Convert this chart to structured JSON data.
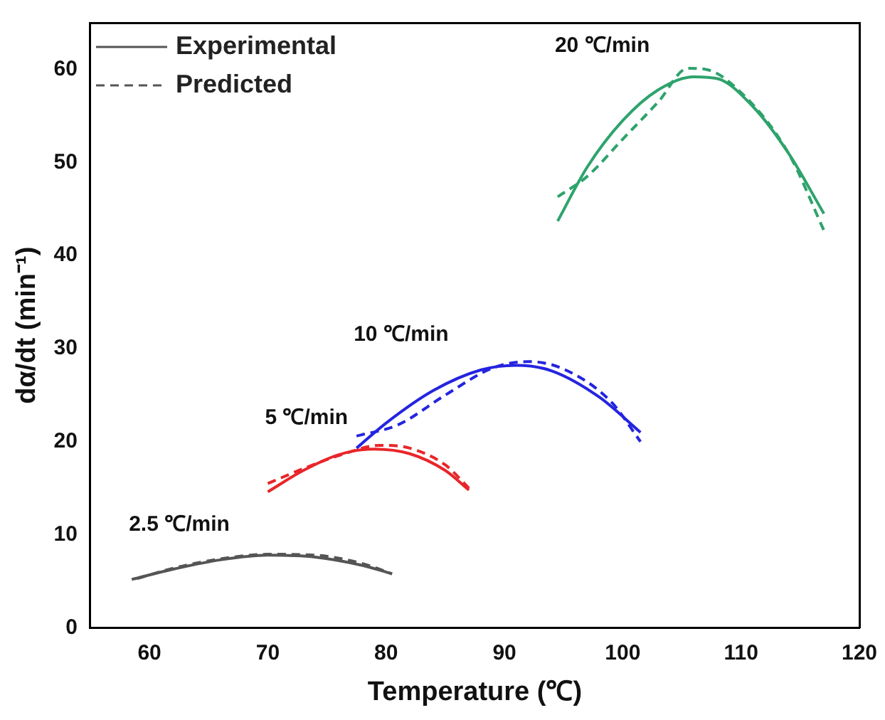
{
  "chart_data": {
    "type": "line",
    "xlabel": "Temperature (℃)",
    "ylabel": "dα/dt (min⁻¹)",
    "xlim": [
      55,
      120
    ],
    "xticks": [
      60,
      70,
      80,
      90,
      100,
      110,
      120
    ],
    "ylim": [
      0,
      65
    ],
    "yticks": [
      0,
      10,
      20,
      30,
      40,
      50,
      60
    ],
    "grid": false,
    "legend": "top left",
    "marker": "none",
    "series": [
      {
        "name": "Experimental",
        "color": "#555555",
        "line_style": "solid",
        "x": [
          58.5,
          62,
          66,
          70,
          74,
          78,
          80.5
        ],
        "values": [
          5.2,
          6.3,
          7.3,
          7.8,
          7.6,
          6.7,
          5.8
        ]
      },
      {
        "name": "Predicted",
        "color": "#555555",
        "line_style": "dashed",
        "x": [
          59,
          62,
          66,
          70,
          74,
          78,
          80.5
        ],
        "values": [
          5.3,
          6.4,
          7.4,
          7.9,
          7.8,
          6.9,
          5.8
        ]
      },
      {
        "color": "#e8262a",
        "line_style": "solid",
        "x": [
          70,
          73,
          76,
          79,
          82,
          85,
          87
        ],
        "values": [
          14.6,
          16.9,
          18.6,
          19.2,
          18.7,
          16.9,
          14.8
        ]
      },
      {
        "color": "#e8262a",
        "line_style": "dashed",
        "x": [
          70,
          73,
          76,
          79.5,
          82,
          85,
          87
        ],
        "values": [
          15.5,
          17.1,
          18.5,
          19.6,
          19.3,
          17.5,
          15.0
        ]
      },
      {
        "color": "#2424e0",
        "line_style": "solid",
        "x": [
          77.5,
          80,
          84,
          88,
          91,
          94,
          98,
          101.5
        ],
        "values": [
          19.3,
          22,
          25.5,
          27.7,
          28.2,
          27.6,
          24.8,
          21
        ]
      },
      {
        "color": "#2424e0",
        "line_style": "dashed",
        "x": [
          77.5,
          81,
          85,
          89,
          92,
          95,
          99,
          101.5
        ],
        "values": [
          20.6,
          21.8,
          25,
          27.9,
          28.6,
          27.8,
          24.3,
          20
        ]
      },
      {
        "color": "#2ea36c",
        "line_style": "solid",
        "x": [
          94.5,
          97,
          100,
          103,
          106,
          108,
          111,
          114,
          117
        ],
        "values": [
          43.7,
          49.5,
          54.5,
          57.8,
          59.2,
          59,
          56,
          51,
          44.5
        ]
      },
      {
        "color": "#2ea36c",
        "line_style": "dashed",
        "x": [
          94.5,
          97,
          100,
          103,
          105.5,
          107,
          110,
          114,
          117
        ],
        "values": [
          46.3,
          48.5,
          52.5,
          56.5,
          60.1,
          60,
          57.5,
          51,
          42.7
        ]
      }
    ],
    "annotations": [
      "2.5 ℃/min",
      "5 ℃/min",
      "10 ℃/min",
      "20 ℃/min"
    ]
  }
}
